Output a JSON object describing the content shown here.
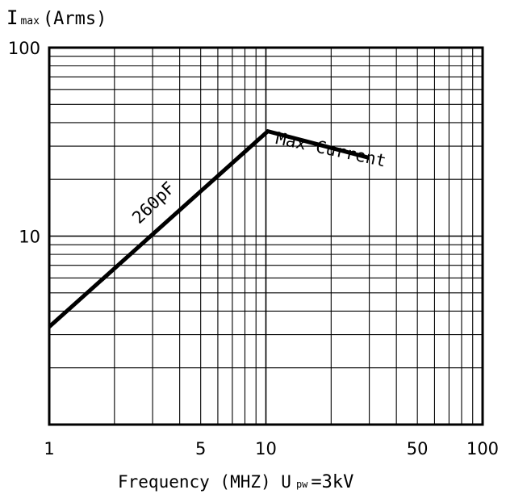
{
  "chart_data": {
    "type": "line",
    "xscale": "log",
    "yscale": "log",
    "xlim": [
      1,
      100
    ],
    "ylim": [
      1,
      100
    ],
    "grid": true,
    "y_title_main": "I",
    "y_title_sub": "max",
    "y_title_unit": "(Arms)",
    "x_title_main": "Frequency (MHZ) U",
    "x_title_sub": "pw",
    "x_title_tail": "=3kV",
    "x_ticks": [
      {
        "value": 1,
        "label": "1"
      },
      {
        "value": 5,
        "label": "5"
      },
      {
        "value": 10,
        "label": "10"
      },
      {
        "value": 50,
        "label": "50"
      },
      {
        "value": 100,
        "label": "100"
      }
    ],
    "y_ticks": [
      {
        "value": 10,
        "label": "10"
      },
      {
        "value": 100,
        "label": "100"
      }
    ],
    "series": [
      {
        "x": [
          1,
          10.2,
          30
        ],
        "y": [
          3.3,
          36,
          26
        ]
      }
    ],
    "annotations": [
      {
        "text": "260pF",
        "x": 2.6,
        "y": 11.5,
        "angle": -44
      },
      {
        "text": "Max Current",
        "x": 11,
        "y": 31,
        "angle": 12
      }
    ]
  }
}
